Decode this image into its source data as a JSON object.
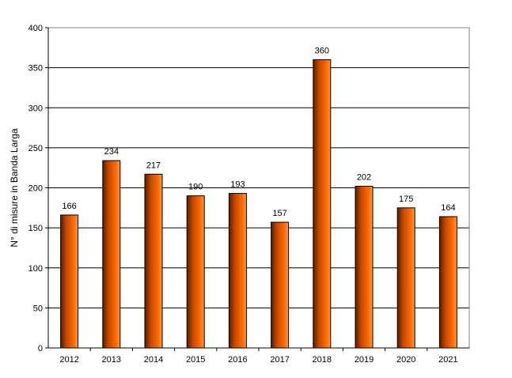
{
  "chart_data": {
    "type": "bar",
    "title": "",
    "xlabel": "",
    "ylabel": "N° di misure in Banda Larga",
    "categories": [
      "2012",
      "2013",
      "2014",
      "2015",
      "2016",
      "2017",
      "2018",
      "2019",
      "2020",
      "2021"
    ],
    "values": [
      166,
      234,
      217,
      190,
      193,
      157,
      360,
      202,
      175,
      164
    ],
    "ylim": [
      0,
      400
    ],
    "yticks": [
      0,
      50,
      100,
      150,
      200,
      250,
      300,
      350,
      400
    ],
    "grid": "horizontal",
    "legend": "none",
    "data_labels": true,
    "colors": {
      "bar_dark": "#7a2a00",
      "bar_mid": "#ff6a00",
      "bar_light": "#ff9a3c",
      "grid": "#000000"
    }
  }
}
